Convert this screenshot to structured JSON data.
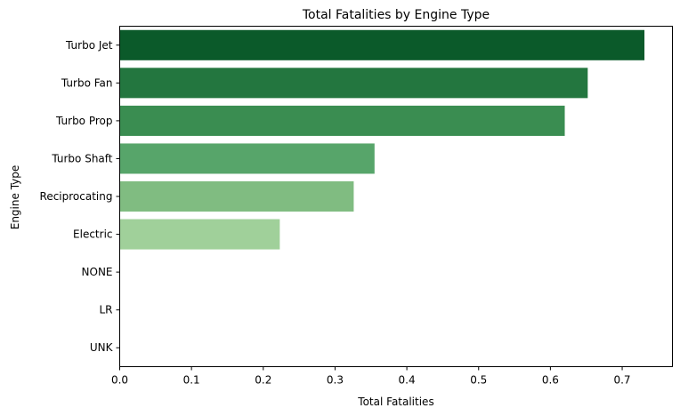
{
  "chart_data": {
    "type": "bar",
    "orientation": "horizontal",
    "title": "Total Fatalities by Engine Type",
    "xlabel": "Total Fatalities",
    "ylabel": "Engine Type",
    "xlim": [
      0,
      0.77
    ],
    "xticks": [
      0.0,
      0.1,
      0.2,
      0.3,
      0.4,
      0.5,
      0.6,
      0.7
    ],
    "xtick_labels": [
      "0.0",
      "0.1",
      "0.2",
      "0.3",
      "0.4",
      "0.5",
      "0.6",
      "0.7"
    ],
    "grid": false,
    "legend": "none",
    "categories": [
      "Turbo Jet",
      "Turbo Fan",
      "Turbo Prop",
      "Turbo Shaft",
      "Reciprocating",
      "Electric",
      "NONE",
      "LR",
      "UNK"
    ],
    "values": [
      0.731,
      0.652,
      0.62,
      0.355,
      0.326,
      0.223,
      0,
      0,
      0
    ],
    "colors": [
      "#0b5a2a",
      "#23763f",
      "#3a8d51",
      "#57a56a",
      "#80bc81",
      "#a0d09a",
      "#c9e6c2",
      "#dff0d8",
      "#eef7ea"
    ]
  }
}
